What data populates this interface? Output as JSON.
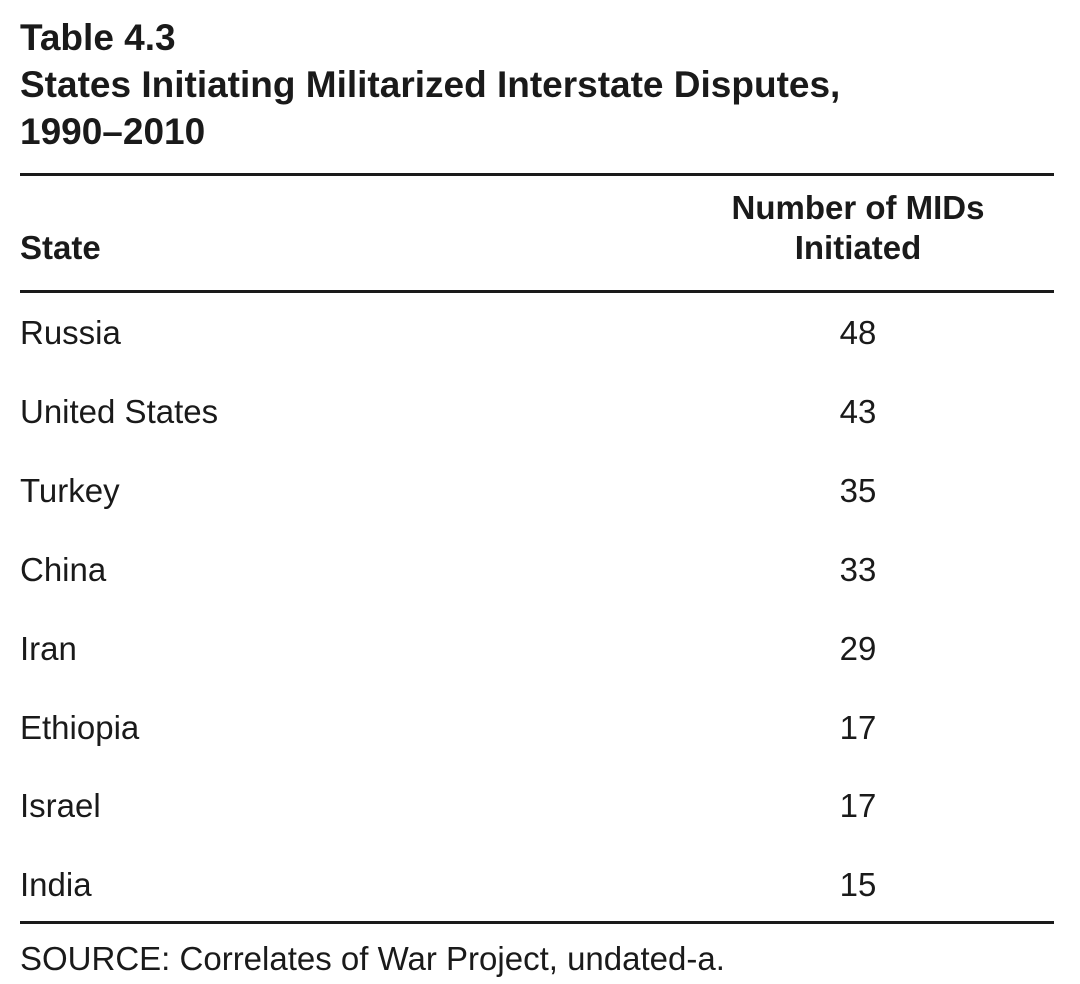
{
  "caption": {
    "table_number": "Table 4.3",
    "title_line1": "States Initiating Militarized Interstate Disputes,",
    "title_line2": "1990–2010"
  },
  "columns": {
    "state": "State",
    "value_line1": "Number of MIDs",
    "value_line2": "Initiated"
  },
  "rows": [
    {
      "state": "Russia",
      "value": "48"
    },
    {
      "state": "United States",
      "value": "43"
    },
    {
      "state": "Turkey",
      "value": "35"
    },
    {
      "state": "China",
      "value": "33"
    },
    {
      "state": "Iran",
      "value": "29"
    },
    {
      "state": "Ethiopia",
      "value": "17"
    },
    {
      "state": "Israel",
      "value": "17"
    },
    {
      "state": "India",
      "value": "15"
    }
  ],
  "source": "SOURCE: Correlates of War Project, undated-a."
}
